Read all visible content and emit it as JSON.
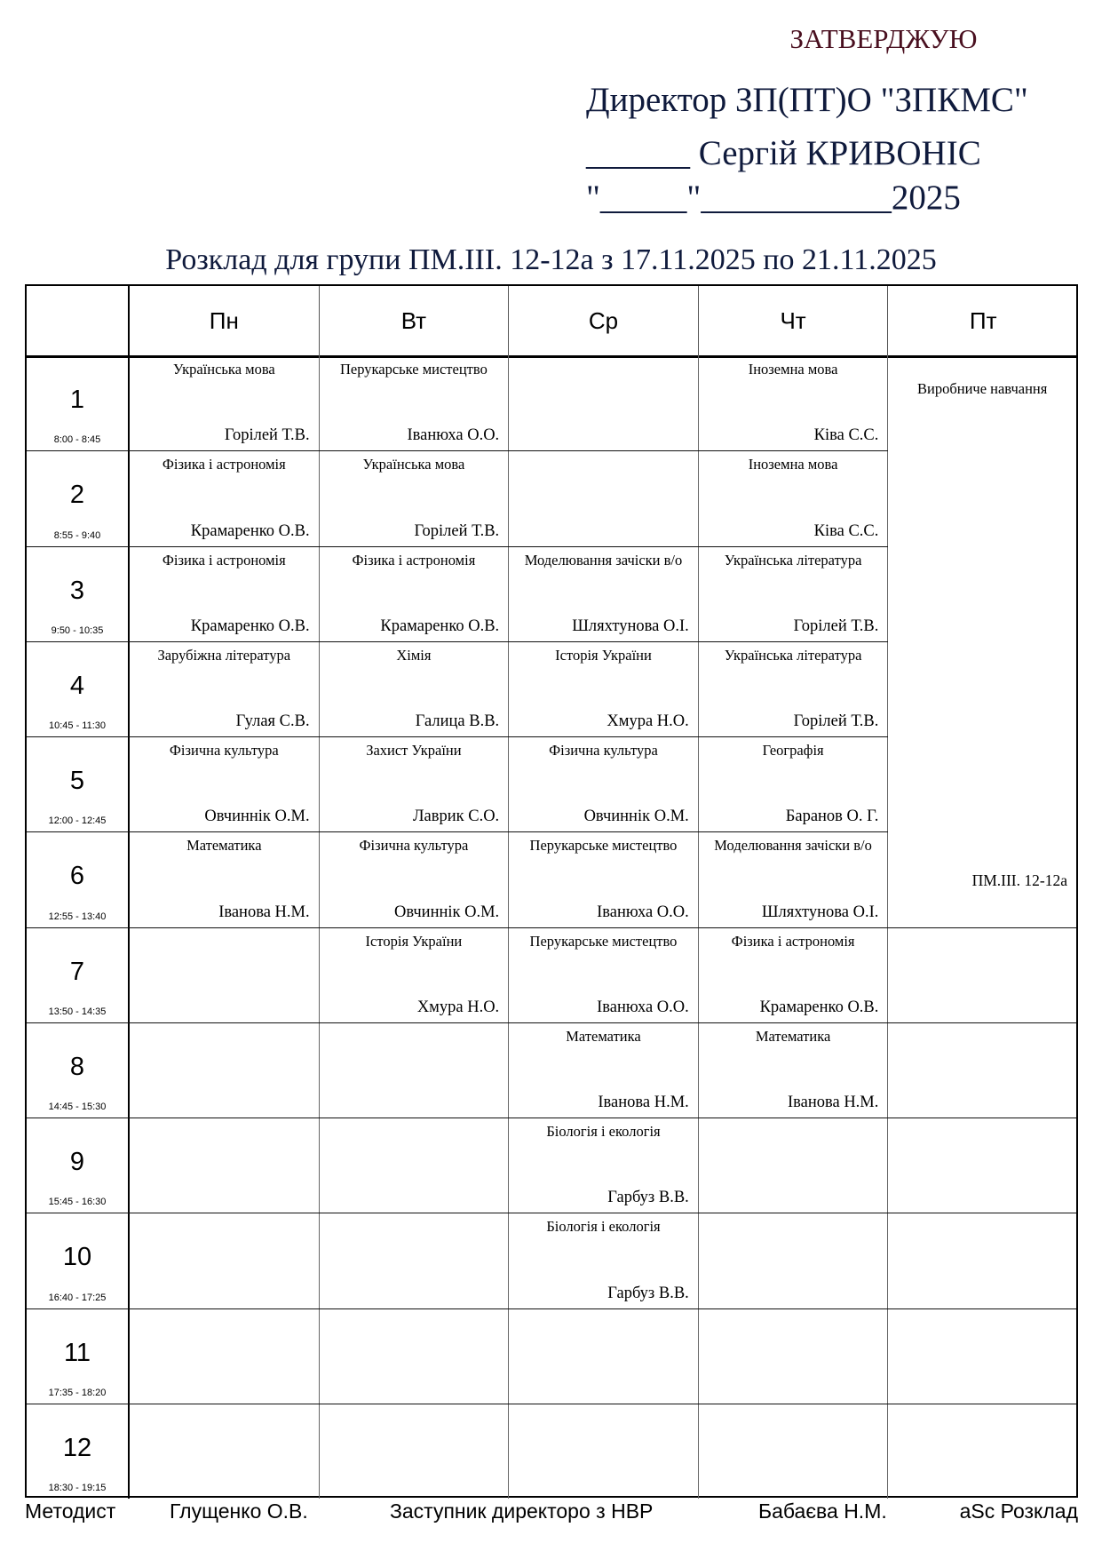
{
  "header": {
    "approve": "ЗАТВЕРДЖУЮ",
    "director_line": "Директор ЗП(ПТ)О \"ЗПКМС\"",
    "signature_line": "______ Сергій КРИВОНІС",
    "date_line": "\"_____\"___________2025"
  },
  "title": "Розклад для групи ПМ.ІІІ. 12-12а з 17.11.2025 по 21.11.2025",
  "days": [
    "Пн",
    "Вт",
    "Ср",
    "Чт",
    "Пт"
  ],
  "rows": [
    {
      "num": "1",
      "time": "8:00 - 8:45",
      "cells": [
        {
          "subject": "Українська мова",
          "teacher": "Горілей Т.В."
        },
        {
          "subject": "Перукарське мистецтво",
          "teacher": "Іванюха О.О."
        },
        {
          "subject": "",
          "teacher": ""
        },
        {
          "subject": "Іноземна мова",
          "teacher": "Ківа С.С."
        }
      ]
    },
    {
      "num": "2",
      "time": "8:55 - 9:40",
      "cells": [
        {
          "subject": "Фізика і астрономія",
          "teacher": "Крамаренко О.В."
        },
        {
          "subject": "Українська мова",
          "teacher": "Горілей Т.В."
        },
        {
          "subject": "",
          "teacher": ""
        },
        {
          "subject": "Іноземна мова",
          "teacher": "Ківа С.С."
        }
      ]
    },
    {
      "num": "3",
      "time": "9:50 - 10:35",
      "cells": [
        {
          "subject": "Фізика і астрономія",
          "teacher": "Крамаренко О.В."
        },
        {
          "subject": "Фізика і астрономія",
          "teacher": "Крамаренко О.В."
        },
        {
          "subject": "Моделювання зачіски в/о",
          "teacher": "Шляхтунова О.І."
        },
        {
          "subject": "Українська література",
          "teacher": "Горілей Т.В."
        }
      ]
    },
    {
      "num": "4",
      "time": "10:45 - 11:30",
      "cells": [
        {
          "subject": "Зарубіжна література",
          "teacher": "Гулая С.В."
        },
        {
          "subject": "Хімія",
          "teacher": "Галица В.В."
        },
        {
          "subject": "Історія України",
          "teacher": "Хмура Н.О."
        },
        {
          "subject": "Українська література",
          "teacher": "Горілей Т.В."
        }
      ]
    },
    {
      "num": "5",
      "time": "12:00 - 12:45",
      "cells": [
        {
          "subject": "Фізична культура",
          "teacher": "Овчиннік О.М."
        },
        {
          "subject": "Захист України",
          "teacher": "Лаврик С.О."
        },
        {
          "subject": "Фізична культура",
          "teacher": "Овчиннік О.М."
        },
        {
          "subject": "Географія",
          "teacher": "Баранов О. Г."
        }
      ]
    },
    {
      "num": "6",
      "time": "12:55 - 13:40",
      "cells": [
        {
          "subject": "Математика",
          "teacher": "Іванова Н.М."
        },
        {
          "subject": "Фізична культура",
          "teacher": "Овчиннік О.М."
        },
        {
          "subject": "Перукарське мистецтво",
          "teacher": "Іванюха О.О."
        },
        {
          "subject": "Моделювання зачіски в/о",
          "teacher": "Шляхтунова О.І."
        }
      ]
    },
    {
      "num": "7",
      "time": "13:50 - 14:35",
      "cells": [
        {
          "subject": "",
          "teacher": ""
        },
        {
          "subject": "Історія України",
          "teacher": "Хмура Н.О."
        },
        {
          "subject": "Перукарське мистецтво",
          "teacher": "Іванюха О.О."
        },
        {
          "subject": "Фізика і астрономія",
          "teacher": "Крамаренко О.В."
        }
      ]
    },
    {
      "num": "8",
      "time": "14:45 - 15:30",
      "cells": [
        {
          "subject": "",
          "teacher": ""
        },
        {
          "subject": "",
          "teacher": ""
        },
        {
          "subject": "Математика",
          "teacher": "Іванова Н.М."
        },
        {
          "subject": "Математика",
          "teacher": "Іванова Н.М."
        }
      ]
    },
    {
      "num": "9",
      "time": "15:45 - 16:30",
      "cells": [
        {
          "subject": "",
          "teacher": ""
        },
        {
          "subject": "",
          "teacher": ""
        },
        {
          "subject": "Біологія і екологія",
          "teacher": "Гарбуз В.В."
        },
        {
          "subject": "",
          "teacher": ""
        }
      ]
    },
    {
      "num": "10",
      "time": "16:40 - 17:25",
      "cells": [
        {
          "subject": "",
          "teacher": ""
        },
        {
          "subject": "",
          "teacher": ""
        },
        {
          "subject": "Біологія і екологія",
          "teacher": "Гарбуз В.В."
        },
        {
          "subject": "",
          "teacher": ""
        }
      ]
    },
    {
      "num": "11",
      "time": "17:35 - 18:20",
      "cells": [
        {
          "subject": "",
          "teacher": ""
        },
        {
          "subject": "",
          "teacher": ""
        },
        {
          "subject": "",
          "teacher": ""
        },
        {
          "subject": "",
          "teacher": ""
        }
      ]
    },
    {
      "num": "12",
      "time": "18:30 - 19:15",
      "cells": [
        {
          "subject": "",
          "teacher": ""
        },
        {
          "subject": "",
          "teacher": ""
        },
        {
          "subject": "",
          "teacher": ""
        },
        {
          "subject": "",
          "teacher": ""
        }
      ]
    }
  ],
  "friday_block": {
    "rows_spanned": 6,
    "subject": "Виробниче навчання",
    "group": "ПМ.ІІІ. 12-12а"
  },
  "footer": {
    "methodist_label": "Методист",
    "methodist_name": "Глущенко О.В.",
    "deputy_label": "Заступник директоро з НВР",
    "deputy_name": "Бабаєва Н.М.",
    "software": "aSc Розклад"
  },
  "colors": {
    "approve": "#4a1020",
    "header_text": "#0f1a3c"
  }
}
